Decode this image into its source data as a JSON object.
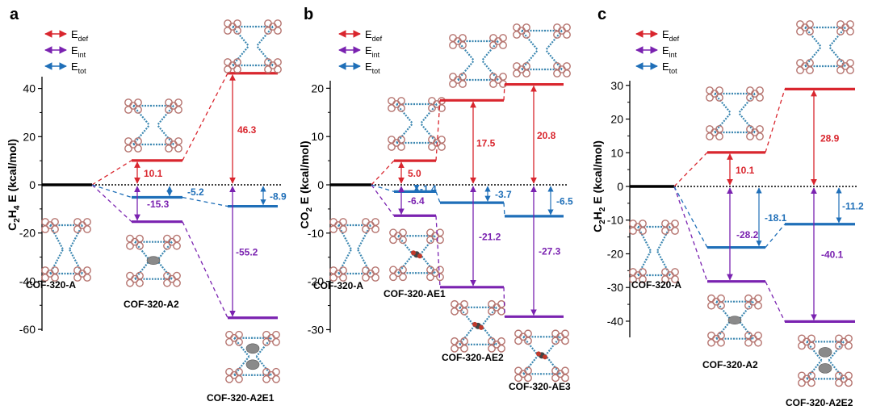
{
  "colors": {
    "def": "#d9262e",
    "int": "#7a22b0",
    "tot": "#1f6fb8",
    "ref": "#000000",
    "cof_ring": "#b5736e",
    "cof_link": "#3a86b0",
    "gas": "#8a8a8a",
    "co2_o": "#c0392b"
  },
  "legend": [
    {
      "key": "def",
      "base": "E",
      "sub": "def"
    },
    {
      "key": "int",
      "base": "E",
      "sub": "int"
    },
    {
      "key": "tot",
      "base": "E",
      "sub": "tot"
    }
  ],
  "chart_data": [
    {
      "type": "energy-diagram",
      "panel": "a",
      "ylabel_main": "C",
      "ylabel_parts": [
        "C",
        "2",
        "H",
        "4",
        " E (kcal/mol)"
      ],
      "ylim": [
        -60,
        50
      ],
      "yticks": [
        -60,
        -40,
        -20,
        0,
        20,
        40
      ],
      "reference": {
        "label": "COF-320-A",
        "value": 0
      },
      "columns": [
        {
          "structure": "COF-320-A2",
          "def": 10.1,
          "int": -15.3,
          "tot": -5.2,
          "labels": {
            "def": "10.1",
            "int": "-15.3",
            "tot": "-5.2"
          }
        },
        {
          "structure": "COF-320-A2E1",
          "def": 46.3,
          "int": -55.2,
          "tot": -8.9,
          "labels": {
            "def": "46.3",
            "int": "-55.2",
            "tot": "-8.9"
          }
        }
      ]
    },
    {
      "type": "energy-diagram",
      "panel": "b",
      "ylabel_parts": [
        "CO",
        "2",
        " E (kcal/mol)"
      ],
      "ylim": [
        -30,
        25
      ],
      "yticks": [
        -30,
        -20,
        -10,
        0,
        10,
        20
      ],
      "reference": {
        "label": "COF-320-A",
        "value": 0
      },
      "columns": [
        {
          "structure": "COF-320-AE1",
          "def": 5.0,
          "int": -6.4,
          "tot": -1.4,
          "labels": {
            "def": "5.0",
            "int": "-6.4",
            "tot": "-1.4"
          }
        },
        {
          "structure": "COF-320-AE2",
          "def": 17.5,
          "int": -21.2,
          "tot": -3.7,
          "labels": {
            "def": "17.5",
            "int": "-21.2",
            "tot": "-3.7"
          }
        },
        {
          "structure": "COF-320-AE3",
          "def": 20.8,
          "int": -27.3,
          "tot": -6.5,
          "labels": {
            "def": "20.8",
            "int": "-27.3",
            "tot": "-6.5"
          }
        }
      ]
    },
    {
      "type": "energy-diagram",
      "panel": "c",
      "ylabel_parts": [
        "C",
        "2",
        "H",
        "2",
        " E (kcal/mol)"
      ],
      "ylim": [
        -45,
        35
      ],
      "yticks": [
        -40,
        -30,
        -20,
        -10,
        0,
        10,
        20,
        30
      ],
      "reference": {
        "label": "COF-320-A",
        "value": 0
      },
      "columns": [
        {
          "structure": "COF-320-A2",
          "def": 10.1,
          "int": -28.2,
          "tot": -18.1,
          "labels": {
            "def": "10.1",
            "int": "-28.2",
            "tot": "-18.1"
          }
        },
        {
          "structure": "COF-320-A2E2",
          "def": 28.9,
          "int": -40.1,
          "tot": -11.2,
          "labels": {
            "def": "28.9",
            "int": "-40.1",
            "tot": "-11.2"
          }
        }
      ]
    }
  ]
}
